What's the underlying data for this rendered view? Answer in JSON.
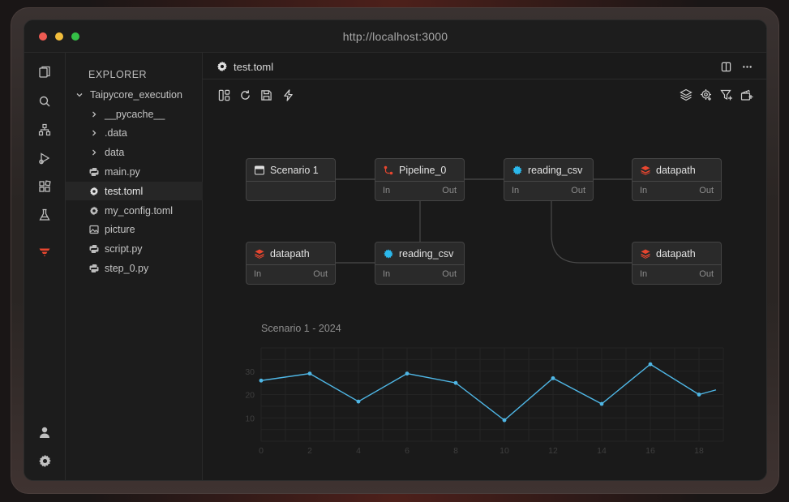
{
  "browser": {
    "url": "http://localhost:3000"
  },
  "activity_bar": {
    "items": [
      "files-icon",
      "search-icon",
      "tree-icon",
      "run-debug-icon",
      "extensions-icon",
      "flask-icon",
      "taipy-icon"
    ],
    "bottom": [
      "account-icon",
      "settings-icon"
    ]
  },
  "explorer": {
    "title": "EXPLORER",
    "root": "Taipycore_execution",
    "items": [
      {
        "label": "__pycache__",
        "type": "folder"
      },
      {
        "label": ".data",
        "type": "folder"
      },
      {
        "label": "data",
        "type": "folder"
      },
      {
        "label": "main.py",
        "type": "python"
      },
      {
        "label": "test.toml",
        "type": "gear"
      },
      {
        "label": "my_config.toml",
        "type": "gear"
      },
      {
        "label": "picture",
        "type": "image"
      },
      {
        "label": "script.py",
        "type": "python"
      },
      {
        "label": "step_0.py",
        "type": "python"
      }
    ]
  },
  "editor": {
    "tab": "test.toml",
    "toolbar": [
      "layout-icon",
      "refresh-icon",
      "save-icon",
      "lightning-icon"
    ],
    "toolbar_right": [
      "layers-icon",
      "cog-plus-icon",
      "filter-plus-icon",
      "clapperboard-plus-icon"
    ]
  },
  "graph": {
    "port_in": "In",
    "port_out": "Out",
    "nodes": [
      {
        "id": "scenario",
        "label": "Scenario 1",
        "kind": "scenario"
      },
      {
        "id": "pipeline",
        "label": "Pipeline_0",
        "kind": "pipeline"
      },
      {
        "id": "task1",
        "label": "reading_csv",
        "kind": "task"
      },
      {
        "id": "dp1",
        "label": "datapath",
        "kind": "datanode"
      },
      {
        "id": "dp2",
        "label": "datapath",
        "kind": "datanode"
      },
      {
        "id": "task2",
        "label": "reading_csv",
        "kind": "task"
      },
      {
        "id": "dp3",
        "label": "datapath",
        "kind": "datanode"
      }
    ]
  },
  "colors": {
    "line": "#4fb7e6",
    "datanode": "#e8462f",
    "task": "#2bb8ec",
    "pipeline": "#e8462f"
  },
  "chart_data": {
    "type": "line",
    "title": "Scenario 1 - 2024",
    "xlabel": "",
    "ylabel": "",
    "x": [
      0,
      2,
      4,
      6,
      8,
      10,
      12,
      14,
      16,
      18,
      18.7
    ],
    "values": [
      26,
      29,
      17,
      29,
      25,
      9,
      27,
      16,
      33,
      20,
      22
    ],
    "xticks": [
      0,
      2,
      4,
      6,
      8,
      10,
      12,
      14,
      16,
      18
    ],
    "yticks": [
      10,
      20,
      30
    ],
    "xlim": [
      0,
      19
    ],
    "ylim": [
      0,
      40
    ],
    "grid": true
  }
}
